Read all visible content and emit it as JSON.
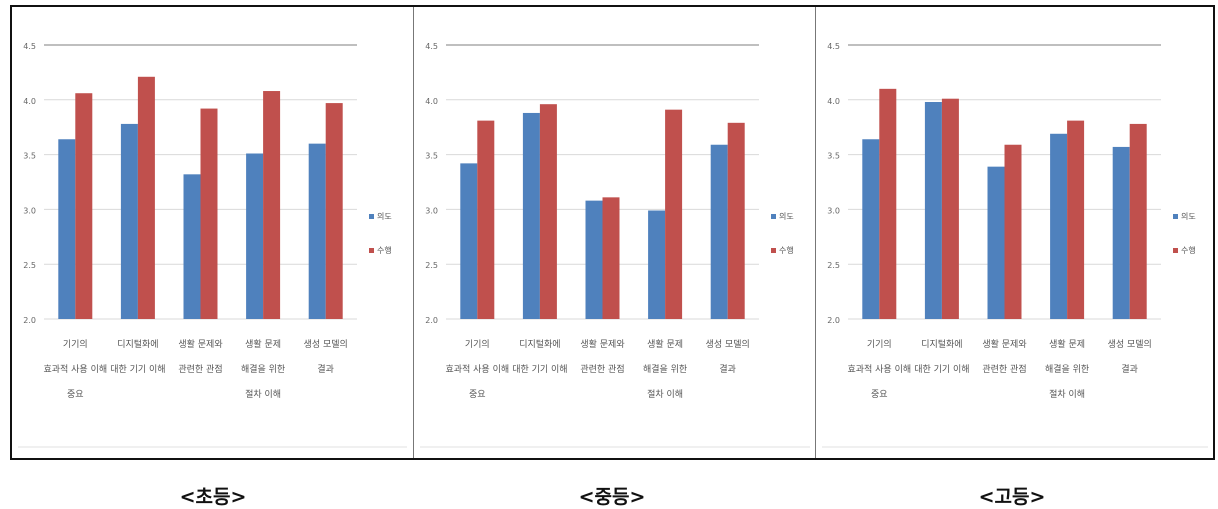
{
  "chart_data": [
    {
      "type": "bar",
      "caption": "<초등>",
      "ylim": [
        2.0,
        4.5
      ],
      "yticks": [
        "2.0",
        "2.5",
        "3.0",
        "3.5",
        "4.0",
        "4.5"
      ],
      "grid": true,
      "legend": "right",
      "categories": [
        [
          "기기의",
          "효과적 사용 이해",
          "중요"
        ],
        [
          "디지털화에",
          "대한 기기 이해",
          ""
        ],
        [
          "생활 문제와",
          "관련한 관점",
          ""
        ],
        [
          "생활 문제",
          "해결을 위한",
          "절차 이해"
        ],
        [
          "생성 모델의",
          "결과",
          ""
        ]
      ],
      "series": [
        {
          "name": "의도",
          "color": "#4f81bd",
          "values": [
            3.64,
            3.78,
            3.32,
            3.51,
            3.6
          ]
        },
        {
          "name": "수행",
          "color": "#c0504d",
          "values": [
            4.06,
            4.21,
            3.92,
            4.08,
            3.97
          ]
        }
      ]
    },
    {
      "type": "bar",
      "caption": "<중등>",
      "ylim": [
        2.0,
        4.5
      ],
      "yticks": [
        "2.0",
        "2.5",
        "3.0",
        "3.5",
        "4.0",
        "4.5"
      ],
      "grid": true,
      "legend": "right",
      "categories": [
        [
          "기기의",
          "효과적 사용 이해",
          "중요"
        ],
        [
          "디지털화에",
          "대한 기기 이해",
          ""
        ],
        [
          "생활 문제와",
          "관련한 관점",
          ""
        ],
        [
          "생활 문제",
          "해결을 위한",
          "절차 이해"
        ],
        [
          "생성 모델의",
          "결과",
          ""
        ]
      ],
      "series": [
        {
          "name": "의도",
          "color": "#4f81bd",
          "values": [
            3.42,
            3.88,
            3.08,
            2.99,
            3.59
          ]
        },
        {
          "name": "수행",
          "color": "#c0504d",
          "values": [
            3.81,
            3.96,
            3.11,
            3.91,
            3.79
          ]
        }
      ]
    },
    {
      "type": "bar",
      "caption": "<고등>",
      "ylim": [
        2.0,
        4.5
      ],
      "yticks": [
        "2.0",
        "2.5",
        "3.0",
        "3.5",
        "4.0",
        "4.5"
      ],
      "grid": true,
      "legend": "right",
      "categories": [
        [
          "기기의",
          "효과적 사용 이해",
          "중요"
        ],
        [
          "디지털화에",
          "대한 기기 이해",
          ""
        ],
        [
          "생활 문제와",
          "관련한 관점",
          ""
        ],
        [
          "생활 문제",
          "해결을 위한",
          "절차 이해"
        ],
        [
          "생성 모델의",
          "결과",
          ""
        ]
      ],
      "series": [
        {
          "name": "의도",
          "color": "#4f81bd",
          "values": [
            3.64,
            3.98,
            3.39,
            3.69,
            3.57
          ]
        },
        {
          "name": "수행",
          "color": "#c0504d",
          "values": [
            4.1,
            4.01,
            3.59,
            3.81,
            3.78
          ]
        }
      ]
    }
  ]
}
